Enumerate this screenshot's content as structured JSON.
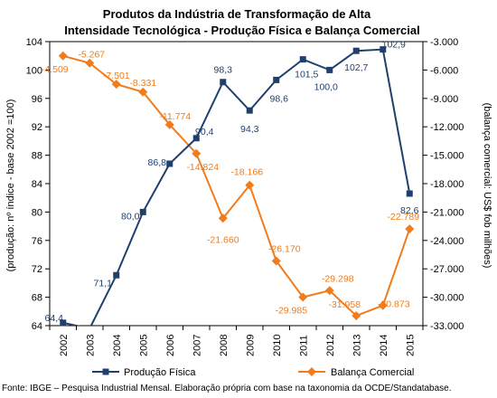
{
  "chart_data": {
    "type": "line",
    "title": "Produtos da Indústria de Transformação de Alta",
    "subtitle": "Intensidade Tecnológica - Produção Física e Balança Comercial",
    "categories": [
      "2002",
      "2003",
      "2004",
      "2005",
      "2006",
      "2007",
      "2008",
      "2009",
      "2010",
      "2011",
      "2012",
      "2013",
      "2014",
      "2015"
    ],
    "y_left": {
      "label": "(produção: nº índice - base 2002 =100)",
      "range": [
        64,
        104
      ],
      "ticks": [
        "64",
        "68",
        "72",
        "76",
        "80",
        "84",
        "88",
        "92",
        "96",
        "100",
        "104"
      ]
    },
    "y_right": {
      "label": "(balança comercial: US$ fob milhões)",
      "range": [
        -33000,
        -3000
      ],
      "ticks": [
        "-33.000",
        "-30.000",
        "-27.000",
        "-24.000",
        "-21.000",
        "-18.000",
        "-15.000",
        "-12.000",
        "-9.000",
        "-6.000",
        "-3.000"
      ]
    },
    "series": [
      {
        "name": "Produção Física",
        "axis": "left",
        "color": "#1f3f6e",
        "marker": "square",
        "values": [
          64.4,
          63.6,
          71.1,
          80.0,
          86.8,
          90.4,
          98.3,
          94.3,
          98.6,
          101.5,
          100.0,
          102.7,
          102.9,
          82.6
        ],
        "labels": [
          "64,4",
          "",
          "71,1",
          "80,0",
          "86,8",
          "90,4",
          "98,3",
          "94,3",
          "98,6",
          "101,5",
          "100,0",
          "102,7",
          "102,9",
          "82,6"
        ]
      },
      {
        "name": "Balança Comercial",
        "axis": "right",
        "color": "#f07c1c",
        "marker": "diamond",
        "values": [
          -4509,
          -5267,
          -7501,
          -8331,
          -11774,
          -14824,
          -21660,
          -18166,
          -26170,
          -29985,
          -29298,
          -31958,
          -30873,
          -22789
        ],
        "labels": [
          "-4.509",
          "-5.267",
          "-7.501",
          "-8.331",
          "-11.774",
          "-14.824",
          "-21.660",
          "-18.166",
          "-26.170",
          "-29.985",
          "-29.298",
          "-31.958",
          "-30.873",
          "-22.789"
        ]
      }
    ],
    "legend_position": "bottom",
    "grid": false
  },
  "footer": {
    "source": "Fonte: IBGE – Pesquisa Industrial Mensal. Elaboração própria com base na taxonomia da OCDE/Standatabase."
  }
}
